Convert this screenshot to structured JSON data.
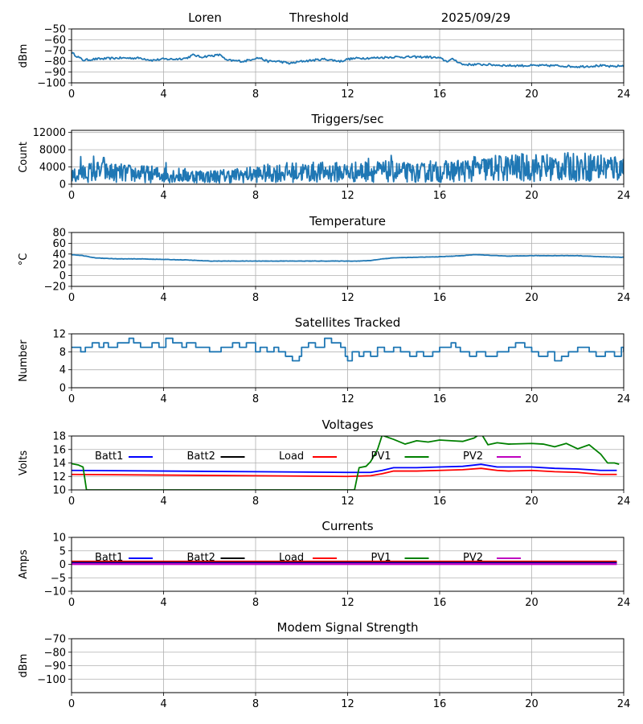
{
  "header": {
    "station": "Loren",
    "label": "Threshold",
    "date": "2025/09/29"
  },
  "colors": {
    "series_blue": "#1f77b4",
    "batt1": "#0000ff",
    "batt2": "#000000",
    "load": "#ff0000",
    "pv1": "#008000",
    "pv2": "#bf00bf",
    "grid": "#b0b0b0"
  },
  "chart_data": [
    {
      "id": "threshold",
      "type": "line",
      "title": "",
      "xlabel": "",
      "ylabel": "dBm",
      "xlim": [
        0,
        24
      ],
      "xticks": [
        0,
        4,
        8,
        12,
        16,
        20,
        24
      ],
      "ylim": [
        -100,
        -50
      ],
      "yticks": [
        -100,
        -90,
        -80,
        -70,
        -60,
        -50
      ],
      "ytick_labels": [
        "−100",
        "−90",
        "−80",
        "−70",
        "−60",
        "−50"
      ],
      "grid": true,
      "series": [
        {
          "name": "Threshold",
          "color": "#1f77b4",
          "noise": 1.0,
          "stepped": false,
          "x": [
            0,
            0.5,
            1,
            2,
            3,
            3.5,
            4,
            4.5,
            5,
            5.3,
            5.6,
            6,
            6.5,
            6.7,
            7.5,
            8,
            8.2,
            8.5,
            9,
            9.5,
            10,
            11,
            11.7,
            12,
            12.5,
            13,
            14,
            14.5,
            15,
            15.5,
            16,
            16.3,
            16.6,
            17,
            18,
            19,
            20,
            21,
            22,
            23,
            23.5,
            24
          ],
          "y": [
            -72,
            -79,
            -78,
            -77,
            -77,
            -79,
            -78,
            -78,
            -77,
            -74,
            -76,
            -75,
            -74,
            -79,
            -80,
            -77,
            -77,
            -80,
            -80,
            -82,
            -80,
            -78,
            -80,
            -78,
            -77,
            -77,
            -76,
            -76,
            -76,
            -76,
            -77,
            -80,
            -78,
            -83,
            -83,
            -84,
            -84,
            -84,
            -85,
            -84,
            -85,
            -84
          ]
        }
      ]
    },
    {
      "id": "triggers",
      "type": "line",
      "title": "Triggers/sec",
      "xlabel": "",
      "ylabel": "Count",
      "xlim": [
        0,
        24
      ],
      "xticks": [
        0,
        4,
        8,
        12,
        16,
        20,
        24
      ],
      "ylim": [
        0,
        12500
      ],
      "yticks": [
        0,
        4000,
        8000,
        12000
      ],
      "ytick_labels": [
        "0",
        "4000",
        "8000",
        "12000"
      ],
      "grid": true,
      "series": [
        {
          "name": "Triggers",
          "color": "#1f77b4",
          "noise": 2200,
          "stepped": false,
          "x": [
            0,
            1,
            2,
            3,
            4,
            5,
            6,
            7,
            8,
            9,
            10,
            11,
            12,
            13,
            14,
            15,
            16,
            17,
            18,
            19,
            20,
            21,
            22,
            23,
            24
          ],
          "y": [
            1800,
            3000,
            2600,
            2400,
            2200,
            2000,
            1800,
            2000,
            2300,
            2700,
            2800,
            2800,
            2800,
            3000,
            2900,
            2600,
            2900,
            3200,
            3600,
            3800,
            3900,
            3900,
            4000,
            4000,
            3700
          ],
          "spikes": [
            [
              0.4,
              6400
            ],
            [
              0.95,
              6500
            ],
            [
              1.4,
              6200
            ],
            [
              4.1,
              5000
            ],
            [
              12.9,
              6000
            ],
            [
              13.9,
              6700
            ],
            [
              15.6,
              5400
            ],
            [
              17.5,
              6400
            ],
            [
              19.6,
              6100
            ],
            [
              22.7,
              6000
            ],
            [
              23.6,
              6200
            ]
          ]
        }
      ]
    },
    {
      "id": "temperature",
      "type": "line",
      "title": "Temperature",
      "xlabel": "",
      "ylabel": "°C",
      "xlim": [
        0,
        24
      ],
      "xticks": [
        0,
        4,
        8,
        12,
        16,
        20,
        24
      ],
      "ylim": [
        -20,
        80
      ],
      "yticks": [
        -20,
        0,
        20,
        40,
        60,
        80
      ],
      "ytick_labels": [
        "−20",
        "0",
        "20",
        "40",
        "60",
        "80"
      ],
      "grid": true,
      "series": [
        {
          "name": "Temperature",
          "color": "#1f77b4",
          "noise": 0.3,
          "stepped": false,
          "x": [
            0,
            0.5,
            1,
            2,
            3,
            4,
            5,
            6,
            7,
            8,
            9,
            10,
            11,
            12,
            12.5,
            13,
            13.5,
            14,
            15,
            16,
            17,
            17.5,
            18,
            19,
            20,
            21,
            22,
            23,
            24
          ],
          "y": [
            39,
            37,
            33,
            31,
            31,
            30,
            29,
            27,
            27,
            27,
            27,
            27,
            27,
            27,
            27,
            28,
            31,
            33,
            34,
            35,
            37,
            39,
            38,
            36,
            37,
            37,
            37,
            35,
            34
          ]
        }
      ]
    },
    {
      "id": "satellites",
      "type": "line",
      "title": "Satellites Tracked",
      "xlabel": "",
      "ylabel": "Number",
      "xlim": [
        0,
        24
      ],
      "xticks": [
        0,
        4,
        8,
        12,
        16,
        20,
        24
      ],
      "ylim": [
        0,
        12
      ],
      "yticks": [
        0,
        4,
        8,
        12
      ],
      "ytick_labels": [
        "0",
        "4",
        "8",
        "12"
      ],
      "grid": true,
      "series": [
        {
          "name": "Satellites",
          "color": "#1f77b4",
          "noise": 0,
          "stepped": true,
          "x": [
            0,
            0.4,
            0.6,
            0.9,
            1.2,
            1.4,
            1.6,
            2,
            2.5,
            2.7,
            3,
            3.5,
            3.8,
            4.1,
            4.4,
            4.8,
            5,
            5.4,
            6,
            6.5,
            7,
            7.3,
            7.6,
            8,
            8.2,
            8.5,
            8.8,
            9,
            9.3,
            9.6,
            9.9,
            10,
            10.3,
            10.6,
            11,
            11.3,
            11.7,
            11.9,
            12,
            12.2,
            12.5,
            12.7,
            13,
            13.3,
            13.6,
            14,
            14.3,
            14.7,
            15,
            15.3,
            15.7,
            16,
            16.5,
            16.7,
            16.9,
            17.3,
            17.6,
            18,
            18.5,
            19,
            19.3,
            19.7,
            20,
            20.3,
            20.7,
            21,
            21.3,
            21.6,
            22,
            22.5,
            22.8,
            23.2,
            23.6,
            23.9,
            24
          ],
          "y": [
            9,
            8,
            9,
            10,
            9,
            10,
            9,
            10,
            11,
            10,
            9,
            10,
            9,
            11,
            10,
            9,
            10,
            9,
            8,
            9,
            10,
            9,
            10,
            8,
            9,
            8,
            9,
            8,
            7,
            6,
            7,
            9,
            10,
            9,
            11,
            10,
            9,
            7,
            6,
            8,
            7,
            8,
            7,
            9,
            8,
            9,
            8,
            7,
            8,
            7,
            8,
            9,
            10,
            9,
            8,
            7,
            8,
            7,
            8,
            9,
            10,
            9,
            8,
            7,
            8,
            6,
            7,
            8,
            9,
            8,
            7,
            8,
            7,
            9,
            8
          ]
        }
      ]
    },
    {
      "id": "voltages",
      "type": "line",
      "title": "Voltages",
      "xlabel": "",
      "ylabel": "Volts",
      "xlim": [
        0,
        24
      ],
      "xticks": [
        0,
        4,
        8,
        12,
        16,
        20,
        24
      ],
      "ylim": [
        10,
        18
      ],
      "yticks": [
        10,
        12,
        14,
        16,
        18
      ],
      "ytick_labels": [
        "10",
        "12",
        "14",
        "16",
        "18"
      ],
      "grid": true,
      "legend": [
        "Batt1",
        "Batt2",
        "Load",
        "PV1",
        "PV2"
      ],
      "series": [
        {
          "name": "Batt1",
          "color": "#0000ff",
          "noise": 0,
          "stepped": false,
          "x": [
            0,
            4,
            8,
            12,
            13,
            13.5,
            14,
            15,
            16,
            17,
            17.8,
            18.5,
            19,
            20,
            21,
            22,
            23,
            23.7
          ],
          "y": [
            12.9,
            12.8,
            12.7,
            12.6,
            12.6,
            12.9,
            13.3,
            13.3,
            13.4,
            13.5,
            13.8,
            13.4,
            13.4,
            13.4,
            13.2,
            13.1,
            12.9,
            12.9
          ]
        },
        {
          "name": "Load",
          "color": "#ff0000",
          "noise": 0,
          "stepped": false,
          "x": [
            0,
            4,
            8,
            12,
            13,
            13.5,
            14,
            15,
            16,
            17,
            17.8,
            18.5,
            19,
            20,
            21,
            22,
            23,
            23.7
          ],
          "y": [
            12.3,
            12.2,
            12.1,
            12.0,
            12.1,
            12.4,
            12.8,
            12.8,
            12.9,
            13.0,
            13.2,
            12.9,
            12.8,
            12.9,
            12.7,
            12.6,
            12.3,
            12.3
          ]
        },
        {
          "name": "PV1",
          "color": "#008000",
          "noise": 0,
          "stepped": false,
          "x": [
            0,
            0.3,
            0.5,
            0.65,
            12.3,
            12.5,
            12.8,
            13,
            13.3,
            13.5,
            14,
            14.5,
            15,
            15.5,
            16,
            16.5,
            17,
            17.5,
            17.8,
            18.1,
            18.5,
            19,
            20,
            20.5,
            21,
            21.5,
            22,
            22.5,
            23,
            23.3,
            23.6,
            23.8
          ],
          "y": [
            13.9,
            13.7,
            13.4,
            10,
            10,
            13.3,
            13.5,
            14.2,
            16,
            18.1,
            17.5,
            16.8,
            17.3,
            17.1,
            17.4,
            17.3,
            17.2,
            17.7,
            18.4,
            16.7,
            17.0,
            16.8,
            16.9,
            16.8,
            16.4,
            16.9,
            16.1,
            16.7,
            15.3,
            14.0,
            14.0,
            13.8
          ]
        }
      ]
    },
    {
      "id": "currents",
      "type": "line",
      "title": "Currents",
      "xlabel": "",
      "ylabel": "Amps",
      "xlim": [
        0,
        24
      ],
      "xticks": [
        0,
        4,
        8,
        12,
        16,
        20,
        24
      ],
      "ylim": [
        -10,
        10
      ],
      "yticks": [
        -10,
        -5,
        0,
        5,
        10
      ],
      "ytick_labels": [
        "−10",
        "−5",
        "0",
        "5",
        "10"
      ],
      "grid": true,
      "legend": [
        "Batt1",
        "Batt2",
        "Load",
        "PV1",
        "PV2"
      ],
      "series": [
        {
          "name": "Load",
          "color": "#ff0000",
          "noise": 0,
          "stepped": false,
          "x": [
            0,
            23.7
          ],
          "y": [
            1.0,
            1.0
          ]
        },
        {
          "name": "Batt2",
          "color": "#000000",
          "noise": 0,
          "stepped": false,
          "x": [
            0,
            23.7
          ],
          "y": [
            0.6,
            0.6
          ]
        },
        {
          "name": "Batt1",
          "color": "#0000ff",
          "noise": 0,
          "stepped": false,
          "x": [
            0,
            23.7
          ],
          "y": [
            0.3,
            0.3
          ]
        },
        {
          "name": "PV2",
          "color": "#bf00bf",
          "noise": 0,
          "stepped": false,
          "x": [
            0,
            23.7
          ],
          "y": [
            0.1,
            0.1
          ]
        }
      ]
    },
    {
      "id": "modem",
      "type": "line",
      "title": "Modem Signal Strength",
      "xlabel": "",
      "ylabel": "dBm",
      "xlim": [
        0,
        24
      ],
      "xticks": [
        0,
        4,
        8,
        12,
        16,
        20,
        24
      ],
      "ylim": [
        -110,
        -70
      ],
      "yticks": [
        -100,
        -90,
        -80,
        -70
      ],
      "ytick_labels": [
        "−100",
        "−90",
        "−80",
        "−70"
      ],
      "grid": true,
      "series": []
    }
  ]
}
